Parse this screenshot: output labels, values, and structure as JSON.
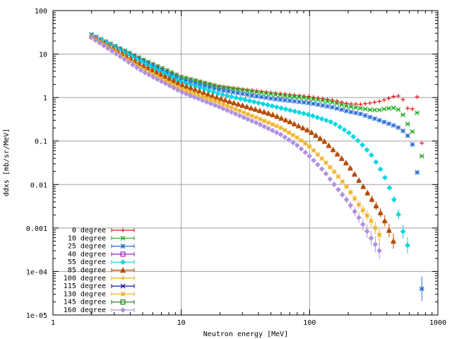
{
  "chart_data": {
    "type": "scatter",
    "title": "",
    "xlabel": "Neutron energy [MeV]",
    "ylabel": "ddxs [mb/sr/MeV]",
    "xscale": "log",
    "yscale": "log",
    "xlim": [
      1,
      1000
    ],
    "ylim": [
      1e-05,
      100
    ],
    "grid": true,
    "legend_position": "bottom-left",
    "x_ticks": [
      {
        "value": 1,
        "label": "1"
      },
      {
        "value": 10,
        "label": "10"
      },
      {
        "value": 100,
        "label": "100"
      },
      {
        "value": 1000,
        "label": "1000"
      }
    ],
    "y_ticks": [
      {
        "value": 100,
        "label": "100"
      },
      {
        "value": 10,
        "label": "10"
      },
      {
        "value": 1,
        "label": "1"
      },
      {
        "value": 0.1,
        "label": "0.1"
      },
      {
        "value": 0.01,
        "label": "0.01"
      },
      {
        "value": 0.001,
        "label": "0.001"
      },
      {
        "value": 0.0001,
        "label": "1e-04"
      },
      {
        "value": 1e-05,
        "label": "1e-05"
      }
    ],
    "series": [
      {
        "name": "0 degree",
        "color": "#e41a1c",
        "marker": "plus",
        "x": [
          2,
          5,
          10,
          20,
          50,
          100,
          150,
          200,
          250,
          300,
          350,
          400,
          450,
          480,
          520,
          560,
          600,
          650,
          700,
          750
        ],
        "y": [
          28,
          7.5,
          3.0,
          1.8,
          1.3,
          1.05,
          0.88,
          0.72,
          0.7,
          0.75,
          0.82,
          0.92,
          1.05,
          1.12,
          1.0,
          0.75,
          0.45,
          0.6,
          1.2,
          0.09
        ]
      },
      {
        "name": "10 degree",
        "color": "#1aa81a",
        "marker": "cross",
        "x": [
          2,
          5,
          10,
          20,
          50,
          100,
          150,
          200,
          250,
          300,
          350,
          400,
          450,
          500,
          550,
          600,
          650,
          700,
          750
        ],
        "y": [
          28,
          7.5,
          3.0,
          1.75,
          1.2,
          0.95,
          0.78,
          0.62,
          0.57,
          0.52,
          0.52,
          0.56,
          0.58,
          0.52,
          0.36,
          0.2,
          0.15,
          0.6,
          0.045
        ]
      },
      {
        "name": "25 degree",
        "color": "#2b6fd6",
        "marker": "star",
        "x": [
          2,
          5,
          10,
          20,
          50,
          100,
          150,
          200,
          250,
          300,
          350,
          400,
          450,
          500,
          550,
          600,
          650,
          680,
          700,
          720,
          750
        ],
        "y": [
          28,
          7.0,
          2.6,
          1.5,
          0.95,
          0.75,
          0.6,
          0.48,
          0.42,
          0.35,
          0.3,
          0.26,
          0.23,
          0.2,
          0.16,
          0.12,
          0.07,
          0.03,
          0.011,
          0.0045,
          4e-05
        ]
      },
      {
        "name": "40 degree",
        "color": "#a020c0",
        "marker": "square",
        "x": [],
        "y": []
      },
      {
        "name": "55 degree",
        "color": "#00d8e0",
        "marker": "diamond",
        "x": [
          2,
          5,
          10,
          20,
          50,
          100,
          150,
          200,
          250,
          300,
          350,
          400,
          450,
          500,
          550,
          580
        ],
        "y": [
          27,
          6.5,
          2.3,
          1.2,
          0.65,
          0.4,
          0.27,
          0.16,
          0.09,
          0.05,
          0.025,
          0.012,
          0.005,
          0.0018,
          0.0006,
          0.0004
        ]
      },
      {
        "name": "85 degree",
        "color": "#b84a00",
        "marker": "triangle",
        "x": [
          2,
          5,
          10,
          20,
          50,
          70,
          100,
          130,
          160,
          200,
          250,
          300,
          350,
          400,
          450
        ],
        "y": [
          26,
          5.5,
          2.0,
          0.95,
          0.42,
          0.28,
          0.17,
          0.1,
          0.055,
          0.028,
          0.011,
          0.005,
          0.0025,
          0.0012,
          0.0005
        ]
      },
      {
        "name": "100 degree",
        "color": "#e8a000",
        "marker": "plus",
        "x": [],
        "y": []
      },
      {
        "name": "115 degree",
        "color": "#1010a0",
        "marker": "cross",
        "x": [],
        "y": []
      },
      {
        "name": "130 degree",
        "color": "#f0b020",
        "marker": "star",
        "x": [
          2,
          5,
          10,
          20,
          40,
          60,
          80,
          100,
          130,
          160,
          200,
          250,
          300,
          350
        ],
        "y": [
          25,
          4.5,
          1.6,
          0.75,
          0.33,
          0.2,
          0.12,
          0.075,
          0.035,
          0.018,
          0.008,
          0.003,
          0.0015,
          0.0007
        ]
      },
      {
        "name": "145 degree",
        "color": "#1a7a1a",
        "marker": "square",
        "x": [],
        "y": []
      },
      {
        "name": "160 degree",
        "color": "#b090e0",
        "marker": "diamond",
        "x": [
          2,
          5,
          10,
          20,
          40,
          60,
          80,
          100,
          130,
          160,
          200,
          250,
          300,
          350
        ],
        "y": [
          24,
          4.0,
          1.35,
          0.6,
          0.25,
          0.14,
          0.08,
          0.045,
          0.02,
          0.009,
          0.004,
          0.0015,
          0.0006,
          0.0003
        ]
      }
    ]
  }
}
